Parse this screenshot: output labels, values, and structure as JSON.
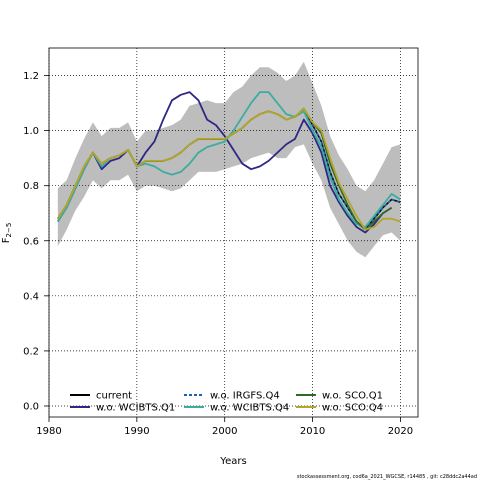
{
  "chart_data": {
    "type": "line",
    "xlabel": "Years",
    "ylabel": "F",
    "ylabel_sub": "2−5",
    "xlim": [
      1980,
      2022
    ],
    "ylim": [
      -0.04,
      1.3
    ],
    "x_ticks": [
      1980,
      1990,
      2000,
      2010,
      2020
    ],
    "y_ticks": [
      0.0,
      0.2,
      0.4,
      0.6,
      0.8,
      1.0,
      1.2
    ],
    "y_tick_labels": [
      "0.0",
      "0.2",
      "0.4",
      "0.6",
      "0.8",
      "1.0",
      "1.2"
    ],
    "grid": true,
    "legend_position": "bottom",
    "band": {
      "color": "#bdbdbd",
      "x": [
        1981,
        1982,
        1983,
        1984,
        1985,
        1986,
        1987,
        1988,
        1989,
        1990,
        1991,
        1992,
        1993,
        1994,
        1995,
        1996,
        1997,
        1998,
        1999,
        2000,
        2001,
        2002,
        2003,
        2004,
        2005,
        2006,
        2007,
        2008,
        2009,
        2010,
        2011,
        2012,
        2013,
        2014,
        2015,
        2016,
        2017,
        2018,
        2019,
        2020
      ],
      "upper": [
        0.79,
        0.82,
        0.9,
        0.97,
        1.03,
        0.98,
        1.01,
        1.01,
        1.03,
        0.96,
        1.0,
        1.0,
        1.01,
        1.02,
        1.04,
        1.09,
        1.1,
        1.11,
        1.1,
        1.1,
        1.14,
        1.16,
        1.2,
        1.23,
        1.23,
        1.21,
        1.18,
        1.2,
        1.25,
        1.17,
        1.09,
        0.98,
        0.91,
        0.86,
        0.8,
        0.78,
        0.82,
        0.88,
        0.94,
        0.95
      ],
      "lower": [
        0.58,
        0.64,
        0.71,
        0.76,
        0.82,
        0.79,
        0.82,
        0.82,
        0.84,
        0.78,
        0.8,
        0.8,
        0.79,
        0.78,
        0.79,
        0.82,
        0.85,
        0.85,
        0.85,
        0.86,
        0.87,
        0.88,
        0.9,
        0.91,
        0.92,
        0.9,
        0.9,
        0.94,
        0.95,
        0.88,
        0.82,
        0.72,
        0.66,
        0.6,
        0.56,
        0.54,
        0.58,
        0.62,
        0.63,
        0.6
      ]
    },
    "series": [
      {
        "name": "current",
        "color": "#000000",
        "dash": "solid",
        "width": 1.6,
        "x": [
          1981,
          1982,
          1983,
          1984,
          1985,
          1986,
          1987,
          1988,
          1989,
          1990,
          1991,
          1992,
          1993,
          1994,
          1995,
          1996,
          1997,
          1998,
          1999,
          2000,
          2001,
          2002,
          2003,
          2004,
          2005,
          2006,
          2007,
          2008,
          2009,
          2010,
          2011,
          2012,
          2013,
          2014,
          2015,
          2016,
          2017,
          2018,
          2019,
          2020
        ],
        "values": [
          0.68,
          0.73,
          0.8,
          0.87,
          0.92,
          0.88,
          0.9,
          0.91,
          0.93,
          0.87,
          0.89,
          0.89,
          0.89,
          0.9,
          0.92,
          0.95,
          0.97,
          0.97,
          0.97,
          0.97,
          0.99,
          1.01,
          1.04,
          1.06,
          1.07,
          1.06,
          1.04,
          1.05,
          1.08,
          1.02,
          0.96,
          0.85,
          0.77,
          0.72,
          0.67,
          0.64,
          0.68,
          0.72,
          0.75,
          0.74
        ]
      },
      {
        "name": "w.o. WCIBTS.Q1",
        "color": "#2e2785",
        "dash": "solid",
        "width": 1.8,
        "x": [
          1981,
          1982,
          1983,
          1984,
          1985,
          1986,
          1987,
          1988,
          1989,
          1990,
          1991,
          1992,
          1993,
          1994,
          1995,
          1996,
          1997,
          1998,
          1999,
          2000,
          2001,
          2002,
          2003,
          2004,
          2005,
          2006,
          2007,
          2008,
          2009,
          2010,
          2011,
          2012,
          2013,
          2014,
          2015,
          2016,
          2017,
          2018,
          2019
        ],
        "values": [
          0.67,
          0.72,
          0.79,
          0.86,
          0.92,
          0.86,
          0.89,
          0.9,
          0.93,
          0.87,
          0.92,
          0.96,
          1.04,
          1.11,
          1.13,
          1.14,
          1.11,
          1.04,
          1.02,
          0.98,
          0.93,
          0.88,
          0.86,
          0.87,
          0.89,
          0.92,
          0.95,
          0.97,
          1.04,
          0.99,
          0.92,
          0.8,
          0.74,
          0.69,
          0.65,
          0.63,
          0.66,
          0.7,
          0.72
        ]
      },
      {
        "name": "w.o. IRGFS.Q4",
        "color": "#1f5fa8",
        "dash": "dashed",
        "width": 1.6,
        "x": [
          1981,
          1982,
          1983,
          1984,
          1985,
          1986,
          1987,
          1988,
          1989,
          1990,
          1991,
          1992,
          1993,
          1994,
          1995,
          1996,
          1997,
          1998,
          1999,
          2000,
          2001,
          2002,
          2003,
          2004,
          2005,
          2006,
          2007,
          2008,
          2009,
          2010,
          2011,
          2012,
          2013,
          2014,
          2015,
          2016,
          2017,
          2018,
          2019,
          2020
        ],
        "values": [
          0.68,
          0.73,
          0.8,
          0.87,
          0.92,
          0.88,
          0.9,
          0.91,
          0.93,
          0.87,
          0.89,
          0.89,
          0.89,
          0.9,
          0.92,
          0.95,
          0.97,
          0.97,
          0.97,
          0.97,
          0.99,
          1.01,
          1.04,
          1.06,
          1.07,
          1.06,
          1.04,
          1.05,
          1.08,
          1.02,
          0.96,
          0.85,
          0.77,
          0.72,
          0.67,
          0.64,
          0.68,
          0.72,
          0.75,
          0.74
        ]
      },
      {
        "name": "w.o. WCIBTS.Q4",
        "color": "#3aada0",
        "dash": "solid",
        "width": 1.8,
        "x": [
          1981,
          1982,
          1983,
          1984,
          1985,
          1986,
          1987,
          1988,
          1989,
          1990,
          1991,
          1992,
          1993,
          1994,
          1995,
          1996,
          1997,
          1998,
          1999,
          2000,
          2001,
          2002,
          2003,
          2004,
          2005,
          2006,
          2007,
          2008,
          2009,
          2010,
          2011,
          2012,
          2013,
          2014,
          2015,
          2016,
          2017,
          2018,
          2019,
          2020
        ],
        "values": [
          0.67,
          0.72,
          0.79,
          0.86,
          0.92,
          0.87,
          0.9,
          0.91,
          0.93,
          0.87,
          0.88,
          0.87,
          0.85,
          0.84,
          0.85,
          0.88,
          0.92,
          0.94,
          0.95,
          0.96,
          1.0,
          1.05,
          1.1,
          1.14,
          1.14,
          1.1,
          1.06,
          1.05,
          1.07,
          1.0,
          0.94,
          0.83,
          0.75,
          0.7,
          0.66,
          0.65,
          0.69,
          0.73,
          0.77,
          0.75
        ]
      },
      {
        "name": "w.o. SCO.Q1",
        "color": "#2f6b22",
        "dash": "solid",
        "width": 1.6,
        "x": [
          1981,
          1982,
          1983,
          1984,
          1985,
          1986,
          1987,
          1988,
          1989,
          1990,
          1991,
          1992,
          1993,
          1994,
          1995,
          1996,
          1997,
          1998,
          1999,
          2000,
          2001,
          2002,
          2003,
          2004,
          2005,
          2006,
          2007,
          2008,
          2009,
          2010,
          2011,
          2012,
          2013,
          2014,
          2015,
          2016,
          2017,
          2018,
          2019
        ],
        "values": [
          0.68,
          0.73,
          0.8,
          0.87,
          0.92,
          0.88,
          0.9,
          0.91,
          0.93,
          0.87,
          0.89,
          0.89,
          0.89,
          0.9,
          0.92,
          0.95,
          0.97,
          0.97,
          0.97,
          0.97,
          0.99,
          1.01,
          1.04,
          1.06,
          1.07,
          1.06,
          1.04,
          1.05,
          1.08,
          1.03,
          0.99,
          0.88,
          0.8,
          0.73,
          0.67,
          0.64,
          0.67,
          0.7,
          0.72
        ]
      },
      {
        "name": "w.o. SCO.Q4",
        "color": "#b5a52a",
        "dash": "solid",
        "width": 1.8,
        "x": [
          1981,
          1982,
          1983,
          1984,
          1985,
          1986,
          1987,
          1988,
          1989,
          1990,
          1991,
          1992,
          1993,
          1994,
          1995,
          1996,
          1997,
          1998,
          1999,
          2000,
          2001,
          2002,
          2003,
          2004,
          2005,
          2006,
          2007,
          2008,
          2009,
          2010,
          2011,
          2012,
          2013,
          2014,
          2015,
          2016,
          2017,
          2018,
          2019,
          2020
        ],
        "values": [
          0.68,
          0.73,
          0.8,
          0.87,
          0.92,
          0.88,
          0.9,
          0.91,
          0.93,
          0.87,
          0.89,
          0.89,
          0.89,
          0.9,
          0.92,
          0.95,
          0.97,
          0.97,
          0.97,
          0.97,
          0.99,
          1.01,
          1.04,
          1.06,
          1.07,
          1.06,
          1.04,
          1.05,
          1.08,
          1.03,
          1.0,
          0.9,
          0.81,
          0.75,
          0.69,
          0.64,
          0.65,
          0.68,
          0.68,
          0.67
        ]
      }
    ]
  },
  "footer": "stockassessment.org,  cod6a_2021_WGCSE,  r14485 ,  git:  c28ddc2a44ad"
}
